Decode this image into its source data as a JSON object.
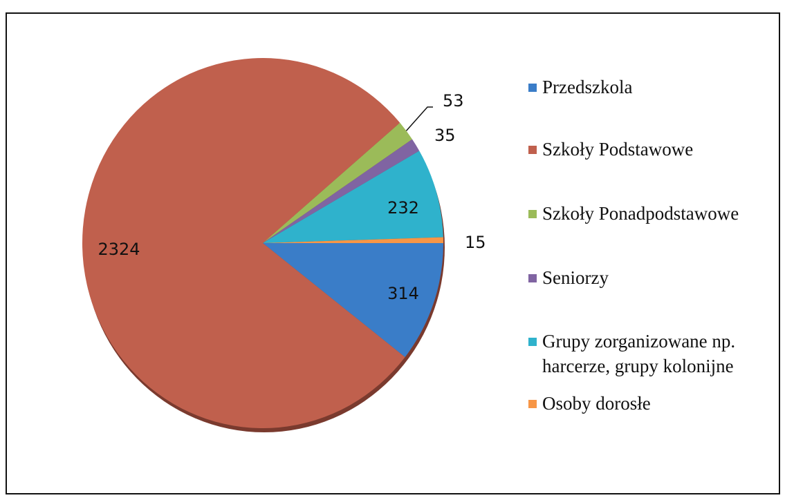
{
  "chart_data": {
    "type": "pie",
    "categories": [
      "Przedszkola",
      "Szkoły Podstawowe",
      "Szkoły Ponadpodstawowe",
      "Seniorzy",
      "Grupy zorganizowane np. harcerze, grupy kolonijne",
      "Osoby dorosłe"
    ],
    "values": [
      314,
      2324,
      53,
      35,
      232,
      15
    ],
    "colors": [
      "#3a7dc8",
      "#c0604d",
      "#9bbb59",
      "#8064a2",
      "#2fb2cc",
      "#f79646"
    ],
    "legend": "right"
  }
}
